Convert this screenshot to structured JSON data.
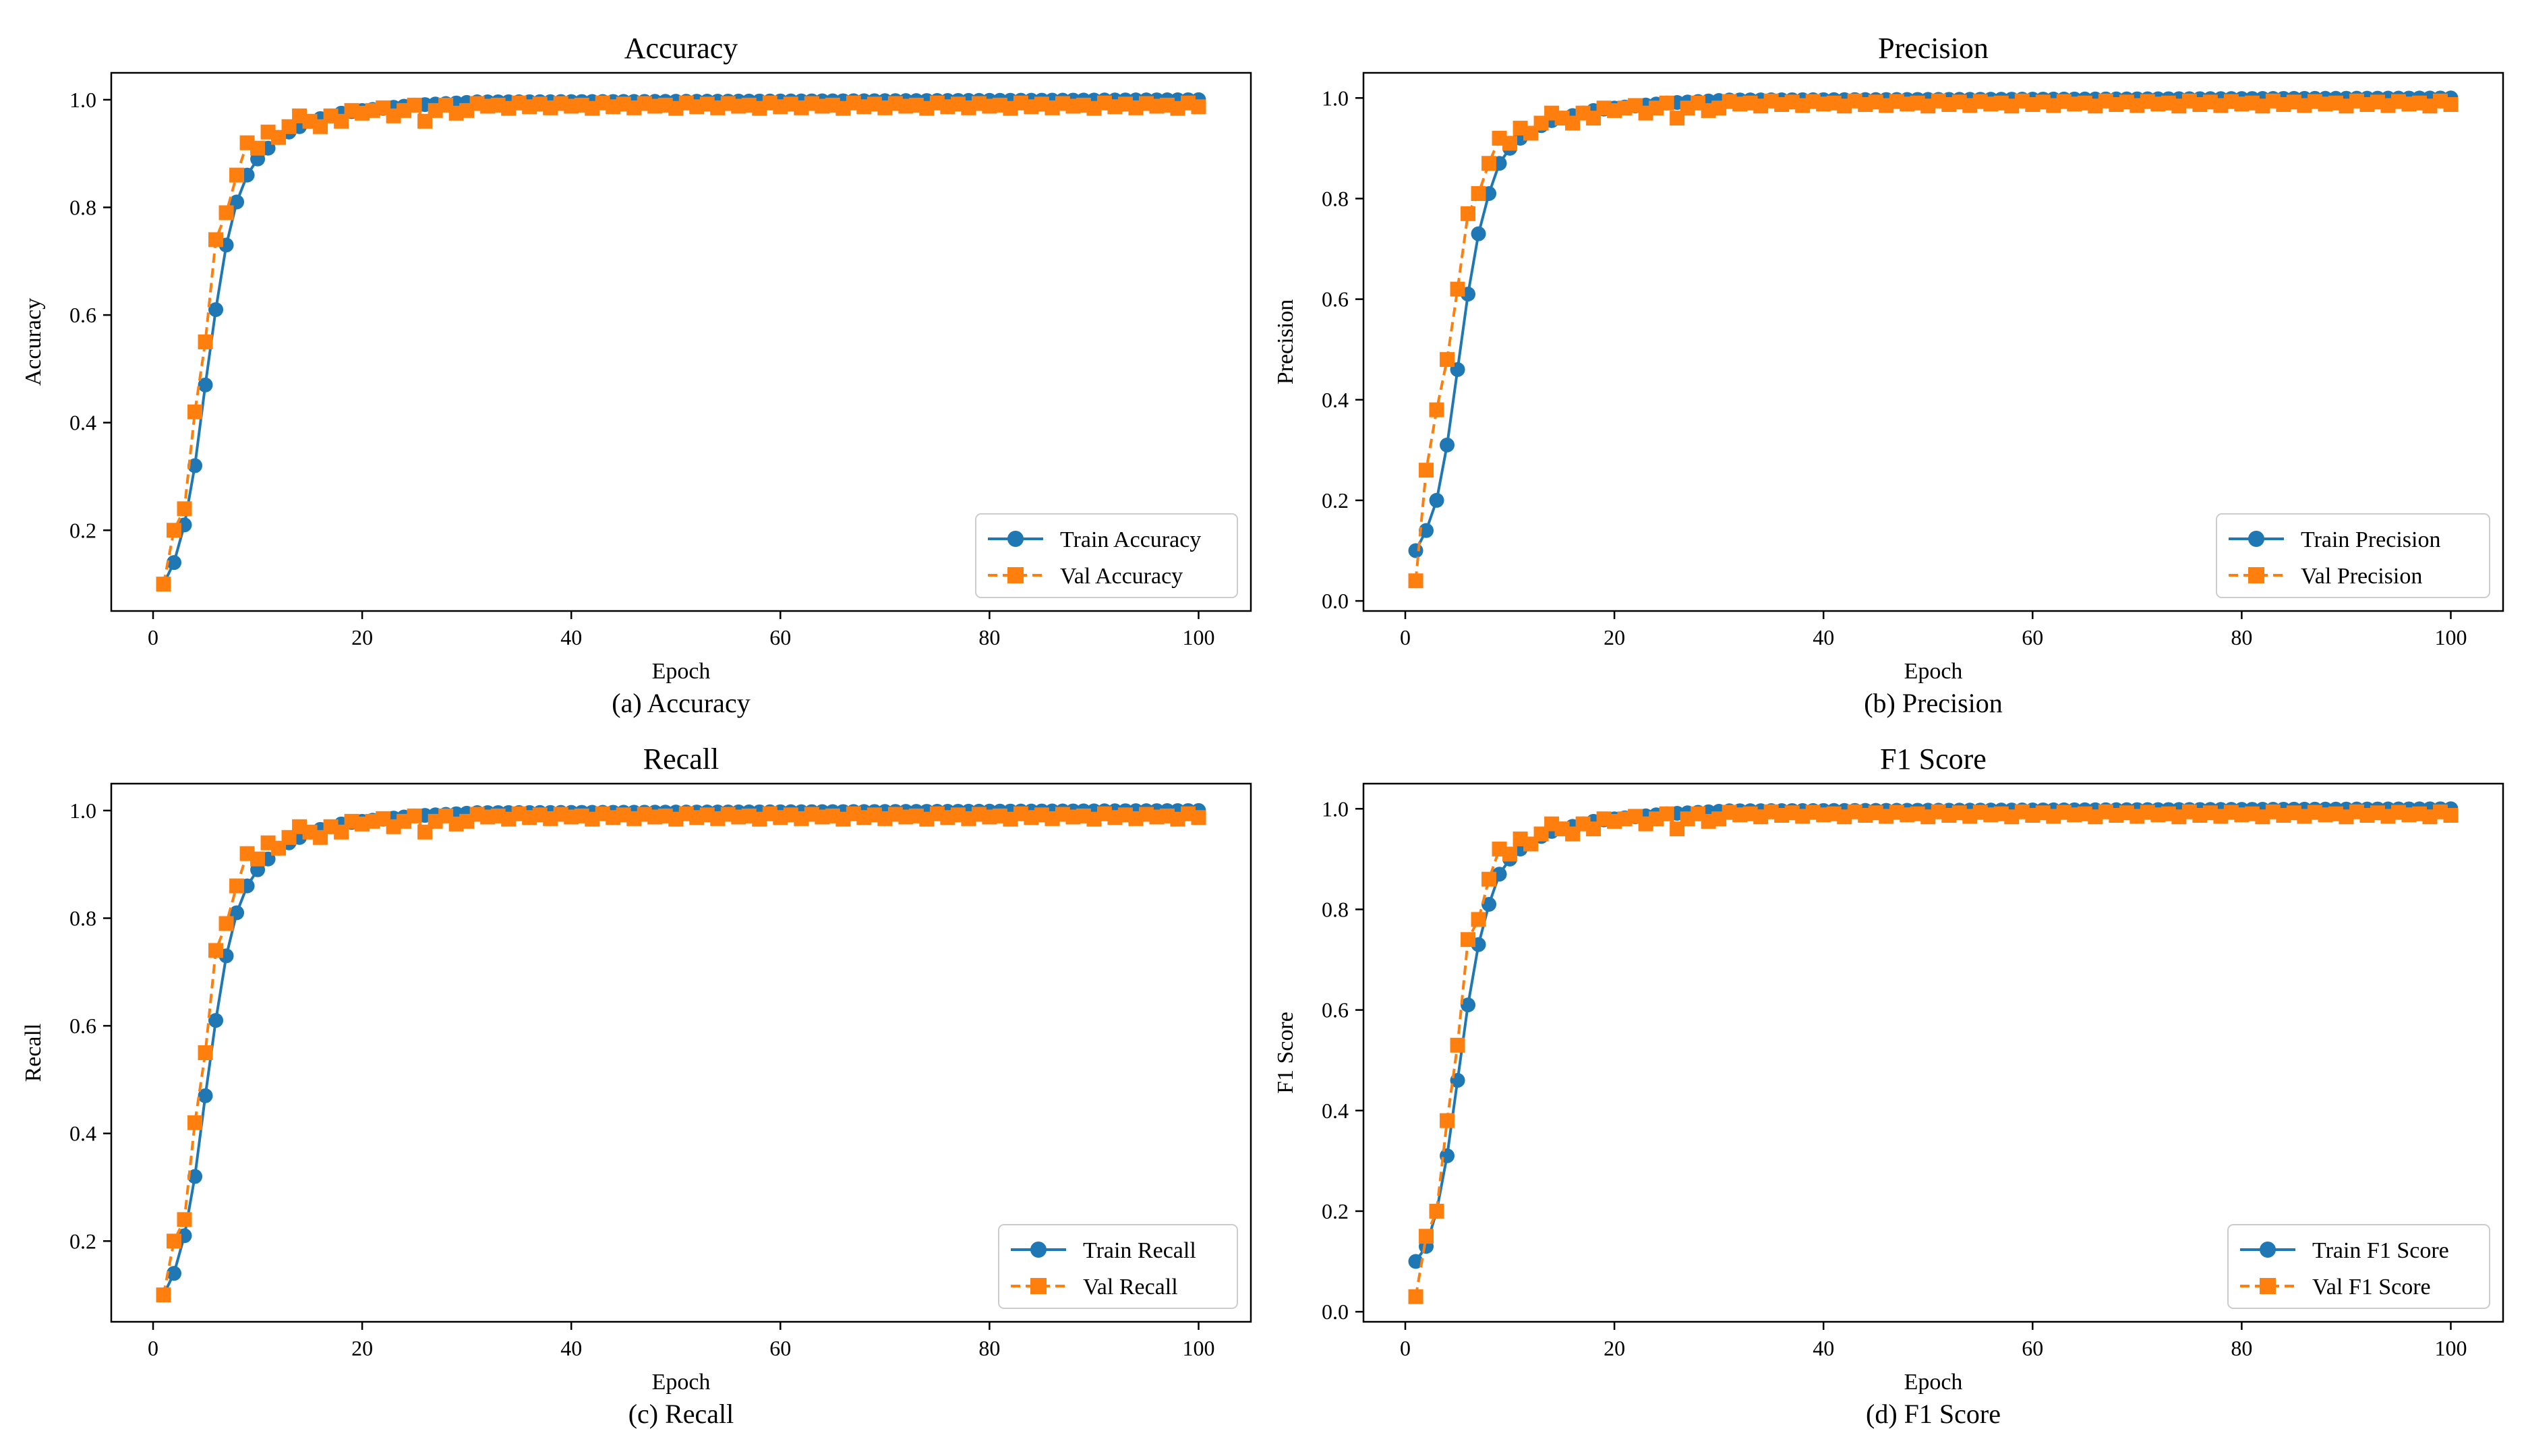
{
  "figure": {
    "colors": {
      "train": "#1f77b4",
      "val": "#ff7f0e",
      "axes": "#000000",
      "legend_border": "#cccccc"
    }
  },
  "chart_data": [
    {
      "type": "line",
      "title": "Accuracy",
      "caption": "(a) Accuracy",
      "xlabel": "Epoch",
      "ylabel": "Accuracy",
      "xlim": [
        -4,
        105
      ],
      "ylim": [
        0.05,
        1.05
      ],
      "xticks": [
        0,
        20,
        40,
        60,
        80,
        100
      ],
      "yticks": [
        0.2,
        0.4,
        0.6,
        0.8,
        1.0
      ],
      "x_start": 1,
      "legend_location": "lower-right",
      "series": [
        {
          "name": "Train Accuracy",
          "style": "solid-circle",
          "values": [
            0.1,
            0.14,
            0.21,
            0.32,
            0.47,
            0.61,
            0.73,
            0.81,
            0.86,
            0.89,
            0.91,
            0.93,
            0.94,
            0.95,
            0.96,
            0.965,
            0.97,
            0.975,
            0.978,
            0.98,
            0.982,
            0.984,
            0.986,
            0.988,
            0.99,
            0.991,
            0.992,
            0.993,
            0.994,
            0.995
          ]
        },
        {
          "name": "Val Accuracy",
          "style": "dashed-square",
          "values": [
            0.1,
            0.2,
            0.24,
            0.42,
            0.55,
            0.74,
            0.79,
            0.86,
            0.92,
            0.91,
            0.94,
            0.93,
            0.95,
            0.97,
            0.96,
            0.95,
            0.97,
            0.96,
            0.98,
            0.975,
            0.98,
            0.985,
            0.97,
            0.98,
            0.99,
            0.96,
            0.98,
            0.99,
            0.975,
            0.98
          ]
        }
      ]
    },
    {
      "type": "line",
      "title": "Precision",
      "caption": "(b) Precision",
      "xlabel": "Epoch",
      "ylabel": "Precision",
      "xlim": [
        -4,
        105
      ],
      "ylim": [
        -0.02,
        1.05
      ],
      "xticks": [
        0,
        20,
        40,
        60,
        80,
        100
      ],
      "yticks": [
        0.0,
        0.2,
        0.4,
        0.6,
        0.8,
        1.0
      ],
      "x_start": 1,
      "legend_location": "lower-right",
      "series": [
        {
          "name": "Train Precision",
          "style": "solid-circle",
          "values": [
            0.1,
            0.14,
            0.2,
            0.31,
            0.46,
            0.61,
            0.73,
            0.81,
            0.87,
            0.9,
            0.92,
            0.93,
            0.945,
            0.955,
            0.96,
            0.965,
            0.97,
            0.975,
            0.978,
            0.98,
            0.982,
            0.984,
            0.986,
            0.988,
            0.99,
            0.991,
            0.992,
            0.993,
            0.994,
            0.995
          ]
        },
        {
          "name": "Val Precision",
          "style": "dashed-square",
          "values": [
            0.04,
            0.26,
            0.38,
            0.48,
            0.62,
            0.77,
            0.81,
            0.87,
            0.92,
            0.91,
            0.94,
            0.93,
            0.95,
            0.97,
            0.96,
            0.95,
            0.97,
            0.96,
            0.98,
            0.975,
            0.98,
            0.985,
            0.97,
            0.98,
            0.99,
            0.96,
            0.98,
            0.99,
            0.975,
            0.98
          ]
        }
      ]
    },
    {
      "type": "line",
      "title": "Recall",
      "caption": "(c) Recall",
      "xlabel": "Epoch",
      "ylabel": "Recall",
      "xlim": [
        -4,
        105
      ],
      "ylim": [
        0.05,
        1.05
      ],
      "xticks": [
        0,
        20,
        40,
        60,
        80,
        100
      ],
      "yticks": [
        0.2,
        0.4,
        0.6,
        0.8,
        1.0
      ],
      "x_start": 1,
      "legend_location": "lower-right",
      "series": [
        {
          "name": "Train Recall",
          "style": "solid-circle",
          "values": [
            0.1,
            0.14,
            0.21,
            0.32,
            0.47,
            0.61,
            0.73,
            0.81,
            0.86,
            0.89,
            0.91,
            0.93,
            0.94,
            0.95,
            0.96,
            0.965,
            0.97,
            0.975,
            0.978,
            0.98,
            0.982,
            0.984,
            0.986,
            0.988,
            0.99,
            0.991,
            0.992,
            0.993,
            0.994,
            0.995
          ]
        },
        {
          "name": "Val Recall",
          "style": "dashed-square",
          "values": [
            0.1,
            0.2,
            0.24,
            0.42,
            0.55,
            0.74,
            0.79,
            0.86,
            0.92,
            0.91,
            0.94,
            0.93,
            0.95,
            0.97,
            0.96,
            0.95,
            0.97,
            0.96,
            0.98,
            0.975,
            0.98,
            0.985,
            0.97,
            0.98,
            0.99,
            0.96,
            0.98,
            0.99,
            0.975,
            0.98
          ]
        }
      ]
    },
    {
      "type": "line",
      "title": "F1 Score",
      "caption": "(d) F1 Score",
      "xlabel": "Epoch",
      "ylabel": "F1 Score",
      "xlim": [
        -4,
        105
      ],
      "ylim": [
        -0.02,
        1.05
      ],
      "xticks": [
        0,
        20,
        40,
        60,
        80,
        100
      ],
      "yticks": [
        0.0,
        0.2,
        0.4,
        0.6,
        0.8,
        1.0
      ],
      "x_start": 1,
      "legend_location": "lower-right",
      "series": [
        {
          "name": "Train F1 Score",
          "style": "solid-circle",
          "values": [
            0.1,
            0.13,
            0.2,
            0.31,
            0.46,
            0.61,
            0.73,
            0.81,
            0.87,
            0.9,
            0.92,
            0.93,
            0.945,
            0.955,
            0.96,
            0.965,
            0.97,
            0.975,
            0.978,
            0.98,
            0.982,
            0.984,
            0.986,
            0.988,
            0.99,
            0.991,
            0.992,
            0.993,
            0.994,
            0.995
          ]
        },
        {
          "name": "Val F1 Score",
          "style": "dashed-square",
          "values": [
            0.03,
            0.15,
            0.2,
            0.38,
            0.53,
            0.74,
            0.78,
            0.86,
            0.92,
            0.91,
            0.94,
            0.93,
            0.95,
            0.97,
            0.96,
            0.95,
            0.97,
            0.96,
            0.98,
            0.975,
            0.98,
            0.985,
            0.97,
            0.98,
            0.99,
            0.96,
            0.98,
            0.99,
            0.975,
            0.98
          ]
        }
      ]
    }
  ]
}
